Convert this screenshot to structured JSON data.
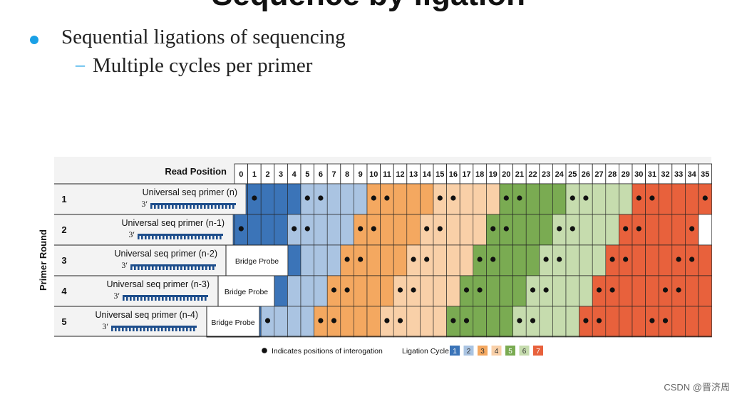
{
  "slide": {
    "title": "Sequence by ligation",
    "bullet1": "Sequential ligations of sequencing",
    "bullet2_dash": "–",
    "bullet2": "Multiple cycles per primer"
  },
  "figure": {
    "read_position_label": "Read Position",
    "primer_round_label": "Primer Round",
    "positions": [
      "0",
      "1",
      "2",
      "3",
      "4",
      "5",
      "6",
      "7",
      "8",
      "9",
      "10",
      "11",
      "12",
      "13",
      "14",
      "15",
      "16",
      "17",
      "18",
      "19",
      "20",
      "21",
      "22",
      "23",
      "24",
      "25",
      "26",
      "27",
      "28",
      "29",
      "30",
      "31",
      "32",
      "33",
      "34",
      "35"
    ],
    "rounds": [
      {
        "num": "1",
        "primer_label": "Universal seq primer (n)",
        "three_prime": "3′",
        "bridge_probe": "",
        "offset": 0
      },
      {
        "num": "2",
        "primer_label": "Universal seq primer (n-1)",
        "three_prime": "3′",
        "bridge_probe": "",
        "offset": -1
      },
      {
        "num": "3",
        "primer_label": "Universal seq primer (n-2)",
        "three_prime": "3′",
        "bridge_probe": "Bridge Probe",
        "offset": -2
      },
      {
        "num": "4",
        "primer_label": "Universal seq primer (n-3)",
        "three_prime": "3′",
        "bridge_probe": "Bridge Probe",
        "offset": -3
      },
      {
        "num": "5",
        "primer_label": "Universal seq primer (n-4)",
        "three_prime": "3′",
        "bridge_probe": "Bridge Probe",
        "offset": -4
      }
    ],
    "legend": {
      "dot_text": "Indicates positions of interogation",
      "cycle_label": "Ligation Cycle",
      "cycles": [
        "1",
        "2",
        "3",
        "4",
        "5",
        "6",
        "7"
      ],
      "colors": [
        "#3b74b8",
        "#aac4e2",
        "#f4a860",
        "#f9d0a8",
        "#7aab52",
        "#c6dcae",
        "#e8613c"
      ]
    }
  },
  "watermark": "CSDN @晋济周"
}
